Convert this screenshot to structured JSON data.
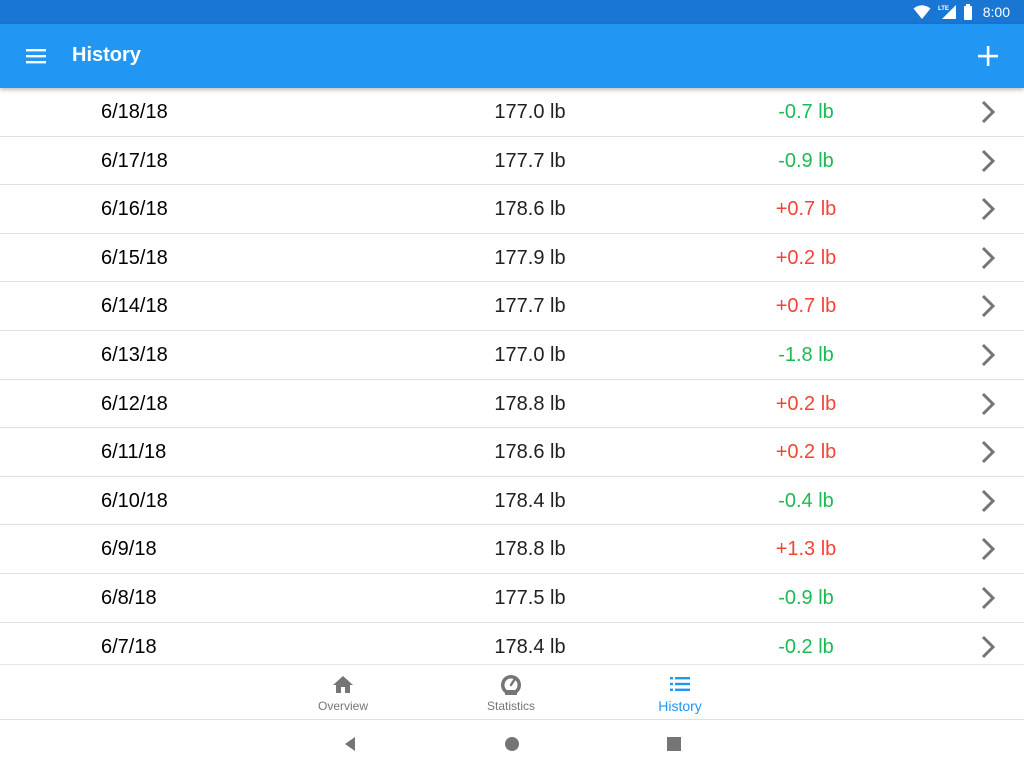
{
  "status_bar": {
    "time": "8:00",
    "network_label": "LTE",
    "icons": [
      "wifi-icon",
      "signal-icon",
      "battery-icon"
    ]
  },
  "app_bar": {
    "title": "History",
    "menu_icon": "menu-icon",
    "add_icon": "add-icon"
  },
  "colors": {
    "primary": "#2196f3",
    "status_bar": "#1976d2",
    "gain": "#f44336",
    "loss": "#1db954"
  },
  "entries": [
    {
      "date": "6/18/18",
      "weight": "177.0 lb",
      "change": "-0.7 lb",
      "direction": "loss"
    },
    {
      "date": "6/17/18",
      "weight": "177.7 lb",
      "change": "-0.9 lb",
      "direction": "loss"
    },
    {
      "date": "6/16/18",
      "weight": "178.6 lb",
      "change": "+0.7 lb",
      "direction": "gain"
    },
    {
      "date": "6/15/18",
      "weight": "177.9 lb",
      "change": "+0.2 lb",
      "direction": "gain"
    },
    {
      "date": "6/14/18",
      "weight": "177.7 lb",
      "change": "+0.7 lb",
      "direction": "gain"
    },
    {
      "date": "6/13/18",
      "weight": "177.0 lb",
      "change": "-1.8 lb",
      "direction": "loss"
    },
    {
      "date": "6/12/18",
      "weight": "178.8 lb",
      "change": "+0.2 lb",
      "direction": "gain"
    },
    {
      "date": "6/11/18",
      "weight": "178.6 lb",
      "change": "+0.2 lb",
      "direction": "gain"
    },
    {
      "date": "6/10/18",
      "weight": "178.4 lb",
      "change": "-0.4 lb",
      "direction": "loss"
    },
    {
      "date": "6/9/18",
      "weight": "178.8 lb",
      "change": "+1.3 lb",
      "direction": "gain"
    },
    {
      "date": "6/8/18",
      "weight": "177.5 lb",
      "change": "-0.9 lb",
      "direction": "loss"
    },
    {
      "date": "6/7/18",
      "weight": "178.4 lb",
      "change": "-0.2 lb",
      "direction": "loss"
    }
  ],
  "bottom_nav": {
    "items": [
      {
        "label": "Overview",
        "icon": "home-icon",
        "active": false
      },
      {
        "label": "Statistics",
        "icon": "gauge-icon",
        "active": false
      },
      {
        "label": "History",
        "icon": "list-icon",
        "active": true
      }
    ]
  },
  "system_nav": {
    "buttons": [
      "back-icon",
      "home-circle-icon",
      "recents-icon"
    ]
  }
}
